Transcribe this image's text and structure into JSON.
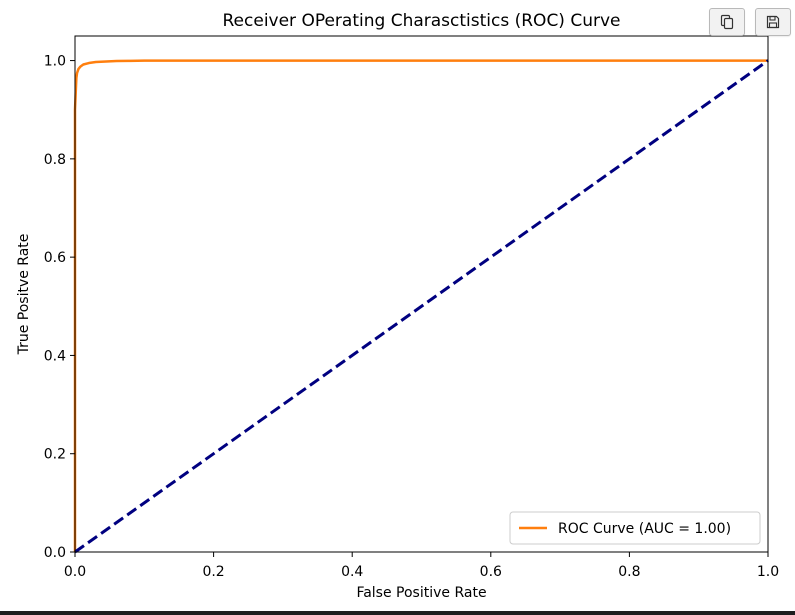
{
  "toolbar": {
    "copy_icon": "copy-icon",
    "save_icon": "save-icon"
  },
  "chart_data": {
    "type": "line",
    "title": "Receiver OPerating Charasctistics (ROC) Curve",
    "xlabel": "False Positive Rate",
    "ylabel": "True Positve Rate",
    "xlim": [
      0.0,
      1.0
    ],
    "ylim": [
      0.0,
      1.05
    ],
    "xticks": [
      "0.0",
      "0.2",
      "0.4",
      "0.6",
      "0.8",
      "1.0"
    ],
    "yticks": [
      "0.0",
      "0.2",
      "0.4",
      "0.6",
      "0.8",
      "1.0"
    ],
    "grid": false,
    "legend_position": "lower-right",
    "series": [
      {
        "name": "ROC Curve (AUC = 1.00)",
        "color": "#ff7f0e",
        "style": "solid",
        "x": [
          0.0,
          0.0,
          0.0015,
          0.002,
          0.003,
          0.005,
          0.008,
          0.012,
          0.02,
          0.03,
          0.045,
          0.06,
          0.08,
          0.1,
          0.2,
          0.4,
          0.6,
          0.8,
          1.0
        ],
        "y": [
          0.0,
          0.9,
          0.95,
          0.965,
          0.975,
          0.983,
          0.988,
          0.992,
          0.995,
          0.997,
          0.998,
          0.999,
          0.9995,
          1.0,
          1.0,
          1.0,
          1.0,
          1.0,
          1.0
        ]
      },
      {
        "color": "#000080",
        "style": "dashed",
        "x": [
          0.0,
          1.0
        ],
        "y": [
          0.0,
          1.0
        ]
      }
    ]
  }
}
